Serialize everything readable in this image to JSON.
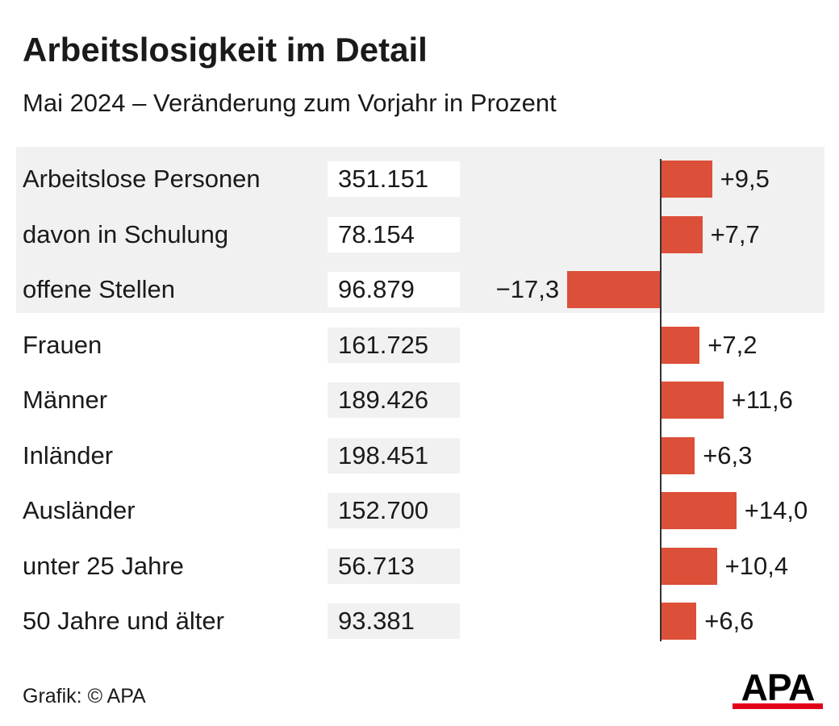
{
  "title": "Arbeitslosigkeit im Detail",
  "subtitle": "Mai 2024 – Veränderung zum Vorjahr in Prozent",
  "credit": "Grafik: © APA",
  "logo_text": "APA",
  "colors": {
    "bar": "#dc4f38",
    "highlight_band": "#f1f1f1",
    "axis": "#333333",
    "logo_red": "#e2001a"
  },
  "chart_data": {
    "type": "bar",
    "orientation": "horizontal",
    "categories": [
      "Arbeitslose Personen",
      "davon in Schulung",
      "offene Stellen",
      "Frauen",
      "Männer",
      "Inländer",
      "Ausländer",
      "unter 25 Jahre",
      "50 Jahre und älter"
    ],
    "totals": [
      "351.151",
      "78.154",
      "96.879",
      "161.725",
      "189.426",
      "198.451",
      "152.700",
      "56.713",
      "93.381"
    ],
    "values": [
      9.5,
      7.7,
      -17.3,
      7.2,
      11.6,
      6.3,
      14.0,
      10.4,
      6.6
    ],
    "value_labels": [
      "+9,5",
      "+7,7",
      "−17,3",
      "+7,2",
      "+11,6",
      "+6,3",
      "+14,0",
      "+10,4",
      "+6,6"
    ],
    "highlighted_rows": 3,
    "grid": false,
    "legend": "none"
  }
}
